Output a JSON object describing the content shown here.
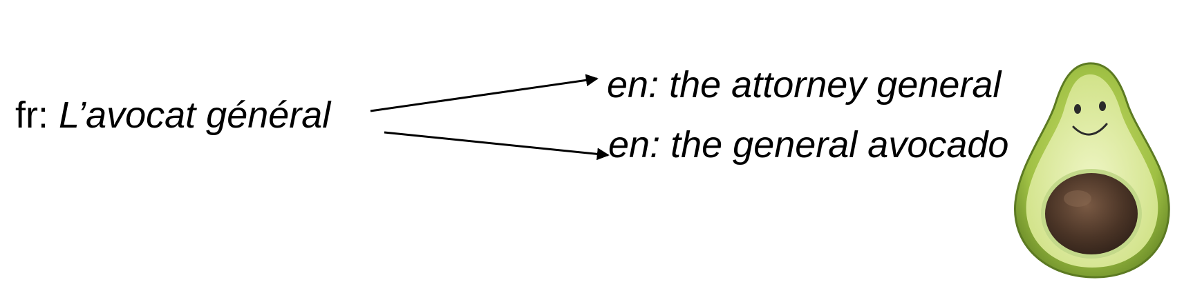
{
  "source": {
    "lang": "fr:",
    "phrase": "L’avocat général"
  },
  "targets": [
    {
      "lang": "en:",
      "phrase": "the attorney general"
    },
    {
      "lang": "en:",
      "phrase": "the general avocado"
    }
  ],
  "colors": {
    "text": "#000000",
    "avocado_skin": "#8fb23a",
    "avocado_flesh": "#d8e89a",
    "avocado_pit": "#4a3426"
  },
  "illustration": "smiling-avocado-half"
}
